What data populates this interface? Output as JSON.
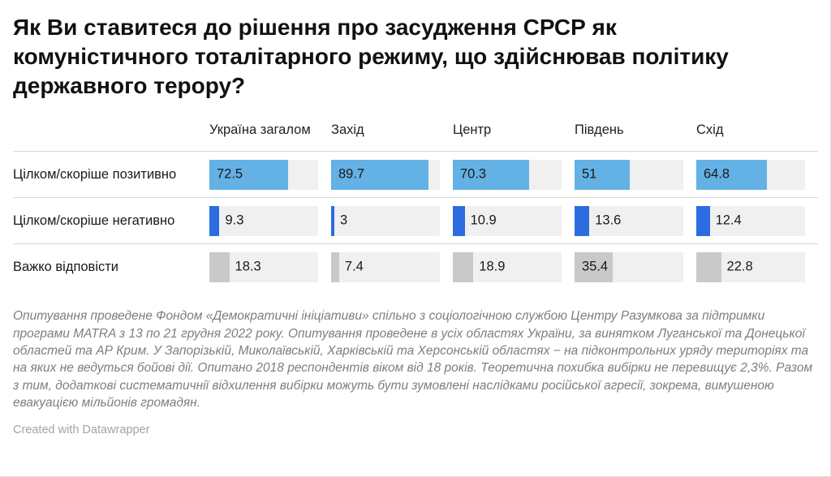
{
  "title": "Як Ви ставитеся до рішення про засудження СРСР як комуністичного тоталітарного режиму, що здійснював політику державного терору?",
  "chart_data": {
    "type": "bar",
    "categories": [
      "Україна загалом",
      "Захід",
      "Центр",
      "Південь",
      "Схід"
    ],
    "series": [
      {
        "name": "Цілком/скоріше позитивно",
        "color": "#63b1e5",
        "values": [
          72.5,
          89.7,
          70.3,
          51,
          64.8
        ]
      },
      {
        "name": "Цілком/скоріше негативно",
        "color": "#2d6ce0",
        "values": [
          9.3,
          3,
          10.9,
          13.6,
          12.4
        ]
      },
      {
        "name": "Важко відповісти",
        "color": "#c9c9c9",
        "values": [
          18.3,
          7.4,
          18.9,
          35.4,
          22.8
        ]
      }
    ],
    "xlim": [
      0,
      100
    ],
    "track_color": "#f0f0f0",
    "title": "Як Ви ставитеся до рішення про засудження СРСР як комуністичного тоталітарного режиму, що здійснював політику державного терору?",
    "legend_position": "none",
    "grid": false
  },
  "footer": {
    "note": "Опитування проведене Фондом «Демократичні ініціативи» спільно з соціологічною службою Центру Разумкова за підтримки програми MATRA з 13 по 21 грудня 2022 року. Опитування проведене в усіх областях України, за винятком Луганської та Донецької областей та АР Крим. У Запорізькій, Миколаївській, Харківській та Херсонській областях − на підконтрольних уряду територіях та на яких не ведуться бойові дії. Опитано 2018 респондентів віком від 18 років. Теоретична похибка вибірки не перевищує 2,3%. Разом з тим, додаткові систематичнії відхилення вибірки можуть бути зумовлені наслідками російської агресії, зокрема, вимушеною евакуацією мільйонів громадян.",
    "credit": "Created with Datawrapper"
  }
}
